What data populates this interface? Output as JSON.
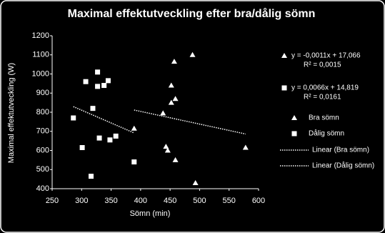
{
  "chart_data": {
    "type": "scatter",
    "title": "Maximal effektutveckling efter bra/dålig sömn",
    "x_label": "Sömn (min)",
    "y_label": "Maximal effektutveckling (W)",
    "xlim": [
      250,
      600
    ],
    "xticks": [
      250,
      300,
      350,
      400,
      450,
      500,
      550,
      600
    ],
    "ylim": [
      400,
      1200
    ],
    "yticks": [
      400,
      500,
      600,
      700,
      800,
      900,
      1000,
      1100,
      1200
    ],
    "trendline": "linear",
    "series": [
      {
        "name": "Bra sömn",
        "marker": "triangle",
        "color": "#ffffff",
        "x": [
          488,
          457,
          452,
          459,
          452,
          438,
          389,
          443,
          446,
          459,
          493,
          578
        ],
        "values": [
          1100,
          1065,
          940,
          870,
          850,
          795,
          715,
          620,
          600,
          550,
          430,
          615
        ],
        "trend_name": "Linear (Bra sömn)",
        "equation": "y = -0,0011x + 17,066",
        "r2": "R² = 0,0015"
      },
      {
        "name": "Dålig sömn",
        "marker": "square",
        "color": "#ffffff",
        "x": [
          286,
          301,
          327,
          307,
          327,
          338,
          345,
          319,
          330,
          348,
          358,
          316,
          389
        ],
        "values": [
          770,
          615,
          1010,
          960,
          935,
          940,
          965,
          820,
          665,
          655,
          675,
          465,
          540
        ],
        "trend_name": "Linear (Dålig sömn)",
        "equation": "y = 0,0066x + 14,819",
        "r2": "R² = 0,0161"
      }
    ]
  }
}
